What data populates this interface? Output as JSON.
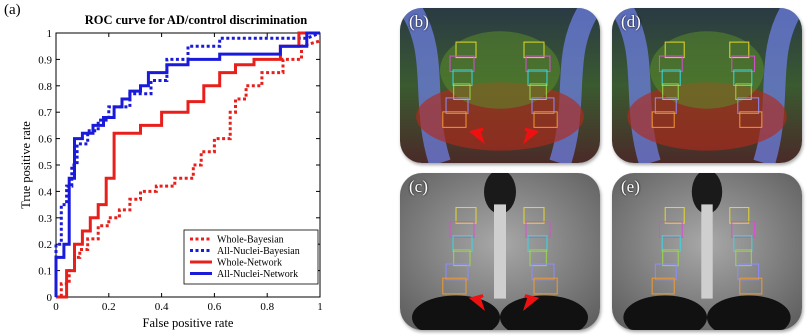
{
  "panel_a_label": "(a)",
  "chart_data": {
    "type": "line",
    "title": "ROC curve for AD/control discrimination",
    "xlabel": "False positive rate",
    "ylabel": "True positive rate",
    "xlim": [
      0,
      1
    ],
    "ylim": [
      0,
      1
    ],
    "xticks": [
      "0",
      "0.2",
      "0.4",
      "0.6",
      "0.8",
      "1"
    ],
    "yticks": [
      "0",
      "0.1",
      "0.2",
      "0.3",
      "0.4",
      "0.5",
      "0.6",
      "0.7",
      "0.8",
      "0.9",
      "1"
    ],
    "grid": false,
    "legend_position": "bottom-right",
    "series": [
      {
        "name": "Whole-Bayesian",
        "color": "#e8201c",
        "style": "dotted",
        "x": [
          0,
          0.02,
          0.02,
          0.05,
          0.05,
          0.07,
          0.07,
          0.09,
          0.09,
          0.12,
          0.12,
          0.16,
          0.16,
          0.2,
          0.2,
          0.24,
          0.24,
          0.28,
          0.28,
          0.32,
          0.32,
          0.38,
          0.38,
          0.45,
          0.45,
          0.52,
          0.52,
          0.55,
          0.55,
          0.6,
          0.6,
          0.66,
          0.66,
          0.68,
          0.68,
          0.72,
          0.72,
          0.78,
          0.78,
          0.86,
          0.86,
          0.93,
          0.93,
          1
        ],
        "y": [
          0,
          0,
          0.05,
          0.05,
          0.1,
          0.1,
          0.15,
          0.15,
          0.18,
          0.18,
          0.22,
          0.22,
          0.27,
          0.27,
          0.3,
          0.3,
          0.33,
          0.33,
          0.37,
          0.37,
          0.4,
          0.4,
          0.42,
          0.42,
          0.45,
          0.45,
          0.5,
          0.5,
          0.55,
          0.55,
          0.6,
          0.6,
          0.7,
          0.7,
          0.75,
          0.75,
          0.8,
          0.8,
          0.85,
          0.85,
          0.9,
          0.9,
          0.95,
          0.97
        ]
      },
      {
        "name": "All-Nuclei-Bayesian",
        "color": "#1a1adb",
        "style": "dotted",
        "x": [
          0,
          0,
          0.02,
          0.02,
          0.04,
          0.04,
          0.06,
          0.06,
          0.08,
          0.08,
          0.12,
          0.12,
          0.16,
          0.16,
          0.2,
          0.2,
          0.28,
          0.28,
          0.36,
          0.36,
          0.42,
          0.42,
          0.5,
          0.5,
          0.62,
          0.62,
          0.95,
          1
        ],
        "y": [
          0,
          0.2,
          0.2,
          0.35,
          0.35,
          0.42,
          0.42,
          0.5,
          0.5,
          0.58,
          0.58,
          0.63,
          0.63,
          0.67,
          0.67,
          0.72,
          0.72,
          0.77,
          0.77,
          0.82,
          0.82,
          0.9,
          0.9,
          0.95,
          0.95,
          0.98,
          0.98,
          1
        ]
      },
      {
        "name": "Whole-Network",
        "color": "#e8201c",
        "style": "solid",
        "x": [
          0,
          0.04,
          0.04,
          0.07,
          0.07,
          0.1,
          0.1,
          0.13,
          0.13,
          0.16,
          0.16,
          0.19,
          0.19,
          0.22,
          0.22,
          0.32,
          0.32,
          0.4,
          0.4,
          0.5,
          0.5,
          0.56,
          0.56,
          0.62,
          0.62,
          0.68,
          0.68,
          0.75,
          0.75,
          0.85,
          0.85,
          0.92,
          0.92,
          1
        ],
        "y": [
          0,
          0,
          0.1,
          0.1,
          0.2,
          0.2,
          0.25,
          0.25,
          0.3,
          0.3,
          0.35,
          0.35,
          0.45,
          0.45,
          0.62,
          0.62,
          0.65,
          0.65,
          0.7,
          0.7,
          0.74,
          0.74,
          0.8,
          0.8,
          0.85,
          0.85,
          0.88,
          0.88,
          0.9,
          0.9,
          0.95,
          0.95,
          1,
          1
        ]
      },
      {
        "name": "All-Nuclei-Network",
        "color": "#1a1adb",
        "style": "solid",
        "x": [
          0,
          0,
          0.03,
          0.03,
          0.05,
          0.05,
          0.07,
          0.07,
          0.1,
          0.1,
          0.14,
          0.14,
          0.18,
          0.18,
          0.22,
          0.22,
          0.25,
          0.25,
          0.28,
          0.28,
          0.32,
          0.32,
          0.35,
          0.35,
          0.42,
          0.42,
          0.5,
          0.5,
          0.62,
          0.62,
          0.85,
          0.85,
          0.95,
          0.95,
          1
        ],
        "y": [
          0,
          0.15,
          0.15,
          0.2,
          0.2,
          0.45,
          0.45,
          0.6,
          0.6,
          0.62,
          0.62,
          0.65,
          0.65,
          0.68,
          0.68,
          0.72,
          0.72,
          0.75,
          0.75,
          0.78,
          0.78,
          0.8,
          0.8,
          0.85,
          0.85,
          0.88,
          0.88,
          0.9,
          0.9,
          0.92,
          0.92,
          0.95,
          0.95,
          1,
          1
        ]
      }
    ]
  },
  "image_panels": [
    {
      "label": "(b)",
      "kind": "color-fa",
      "arrows": true
    },
    {
      "label": "(d)",
      "kind": "color-fa",
      "arrows": false
    },
    {
      "label": "(c)",
      "kind": "grayscale",
      "arrows": true
    },
    {
      "label": "(e)",
      "kind": "grayscale",
      "arrows": false
    }
  ],
  "arrow_color": "#ee1111"
}
